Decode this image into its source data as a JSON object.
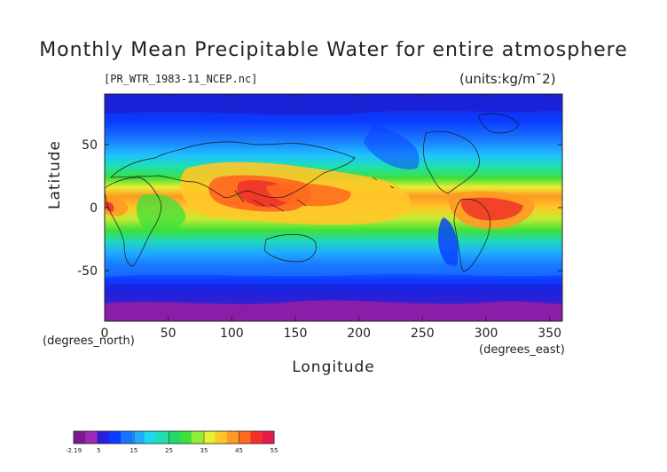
{
  "title": "Monthly Mean Precipitable Water for entire atmosphere",
  "file_label": "[PR_WTR_1983-11_NCEP.nc]",
  "units_label": "(units:kg/m¯2)",
  "axes": {
    "x_title": "Longitude",
    "y_title": "Latitude",
    "x_unit": "(degrees_east)",
    "y_unit": "(degrees_north)",
    "x_ticks": [
      "0",
      "50",
      "100",
      "150",
      "200",
      "250",
      "300",
      "350"
    ],
    "x_tick_values": [
      0,
      50,
      100,
      150,
      200,
      250,
      300,
      350
    ],
    "y_ticks": [
      "50",
      "0",
      "-50"
    ],
    "y_tick_values": [
      50,
      0,
      -50
    ]
  },
  "colorbar": {
    "labels": [
      "-2.19",
      "5",
      "15",
      "25",
      "35",
      "45",
      "55"
    ],
    "label_values": [
      -2.19,
      5,
      15,
      25,
      35,
      45,
      55
    ],
    "min": -2.19,
    "max": 55,
    "colors": [
      "#7a1a8c",
      "#9d2ab8",
      "#2b1de0",
      "#0a3cff",
      "#1873ff",
      "#1faaff",
      "#1fd8f0",
      "#1fe0b0",
      "#20d870",
      "#3ee03a",
      "#90ee3a",
      "#e8ee30",
      "#ffc828",
      "#ff9a24",
      "#ff6a20",
      "#f0322a",
      "#e81a4a"
    ]
  },
  "chart_data": {
    "type": "heatmap",
    "title": "Monthly Mean Precipitable Water for entire atmosphere",
    "xlabel": "Longitude",
    "ylabel": "Latitude",
    "xlim": [
      0,
      360
    ],
    "ylim": [
      -90,
      90
    ],
    "units": "kg/m¯2",
    "value_range": [
      -2.19,
      55
    ],
    "latitude_band_profile": [
      {
        "lat": 85,
        "value": 3
      },
      {
        "lat": 60,
        "value": 9
      },
      {
        "lat": 45,
        "value": 16
      },
      {
        "lat": 30,
        "value": 25
      },
      {
        "lat": 15,
        "value": 38
      },
      {
        "lat": 5,
        "value": 46
      },
      {
        "lat": -5,
        "value": 44
      },
      {
        "lat": -15,
        "value": 36
      },
      {
        "lat": -30,
        "value": 22
      },
      {
        "lat": -45,
        "value": 14
      },
      {
        "lat": -60,
        "value": 8
      },
      {
        "lat": -75,
        "value": 3
      },
      {
        "lat": -85,
        "value": 0
      }
    ]
  }
}
